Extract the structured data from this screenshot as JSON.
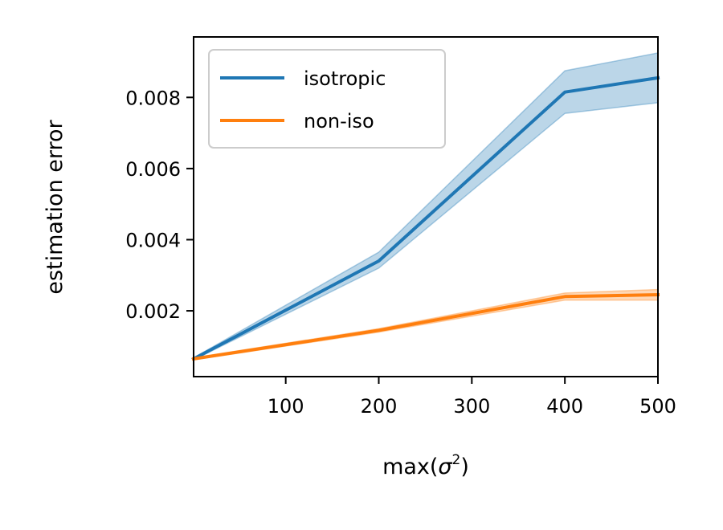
{
  "chart_data": {
    "type": "line",
    "xlabel": {
      "base": "max(",
      "sigma": "σ",
      "sup": "2",
      "close": ")"
    },
    "ylabel": "estimation error",
    "xlim": [
      1,
      500
    ],
    "ylim": [
      0.00015,
      0.0097
    ],
    "xticks": [
      100,
      200,
      300,
      400,
      500
    ],
    "xtick_labels": [
      "100",
      "200",
      "300",
      "400",
      "500"
    ],
    "yticks": [
      0.002,
      0.004,
      0.006,
      0.008
    ],
    "ytick_labels": [
      "0.002",
      "0.004",
      "0.006",
      "0.008"
    ],
    "grid": false,
    "legend_position": "top-left",
    "x": [
      1,
      200,
      400,
      500
    ],
    "series": [
      {
        "name": "isotropic",
        "color": "#1f77b4",
        "values": [
          0.00065,
          0.0034,
          0.00815,
          0.00855
        ],
        "lower": [
          0.00062,
          0.0032,
          0.00755,
          0.00785
        ],
        "upper": [
          0.00068,
          0.00365,
          0.00875,
          0.00925
        ]
      },
      {
        "name": "non-iso",
        "color": "#ff7f0e",
        "values": [
          0.00065,
          0.00145,
          0.0024,
          0.00245
        ],
        "lower": [
          0.00062,
          0.0014,
          0.0023,
          0.0023
        ],
        "upper": [
          0.00068,
          0.0015,
          0.0025,
          0.0026
        ]
      }
    ]
  }
}
